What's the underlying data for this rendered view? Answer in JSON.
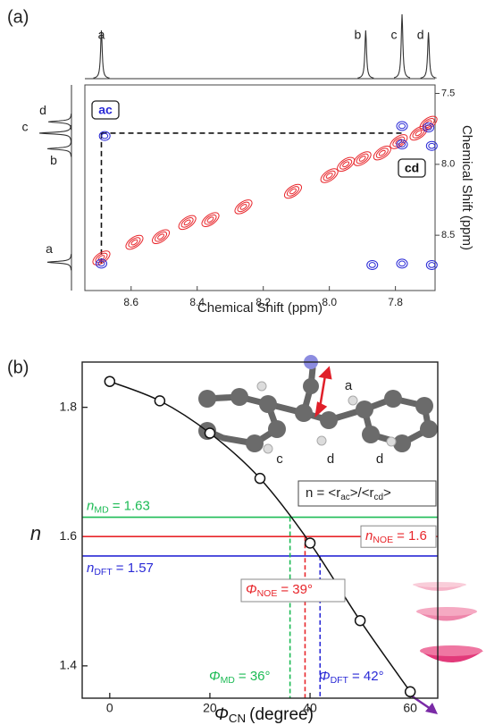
{
  "panel_labels": [
    "(a)",
    "(b)"
  ],
  "chart_data": [
    {
      "type": "contour",
      "x_label": "Chemical Shift (ppm)",
      "y_label": "Chemical Shift (ppm)",
      "xlim": [
        8.74,
        7.68
      ],
      "xticks": [
        8.6,
        8.4,
        8.2,
        {
          "value": 8.0,
          "label": "8.0"
        },
        7.8
      ],
      "ylim": [
        7.44,
        8.89
      ],
      "yticks": [
        7.5,
        {
          "value": 8.0,
          "label": "8.0"
        },
        8.5
      ],
      "projection_peaks": {
        "names": [
          "a",
          "b",
          "c",
          "d"
        ],
        "shifts": [
          8.69,
          7.89,
          7.78,
          7.7
        ],
        "intensities": [
          0.75,
          0.75,
          1,
          0.72
        ]
      },
      "cross_peak_labels": [
        "ac",
        "cd"
      ],
      "peak_sets": [
        {
          "color": "#e8262b",
          "x": [
            8.69,
            8.59,
            8.51,
            8.43,
            8.36,
            8.26,
            8.11,
            8.0,
            7.95,
            7.9,
            7.84,
            7.79,
            7.73,
            7.7
          ],
          "y": [
            8.66,
            8.55,
            8.51,
            8.41,
            8.39,
            8.3,
            8.19,
            8.08,
            8.0,
            7.96,
            7.92,
            7.84,
            7.78,
            7.71
          ]
        },
        {
          "color": "#2a2ad6",
          "x": [
            8.68,
            8.69,
            7.78,
            7.78,
            7.7,
            7.69,
            7.87,
            7.78,
            7.69
          ],
          "y": [
            7.8,
            8.7,
            7.73,
            7.86,
            7.74,
            7.87,
            8.71,
            8.7,
            8.71
          ]
        }
      ]
    },
    {
      "type": "line",
      "x_label": {
        "symbol": "Φ",
        "subscript": "CN",
        "rest": "(degree)"
      },
      "y_label": "n",
      "x": [
        0,
        10,
        20,
        30,
        40,
        50,
        60
      ],
      "values": [
        1.84,
        1.81,
        1.76,
        1.69,
        1.59,
        1.47,
        1.36
      ],
      "color": "#111111",
      "xlim": [
        -5.5,
        65.5
      ],
      "xticks": [
        0,
        20,
        40,
        60
      ],
      "ylim": [
        1.35,
        1.87
      ],
      "yticks": [
        1.4,
        1.6,
        1.8
      ],
      "reference_lines": [
        {
          "symbol": "n",
          "subscript": "MD",
          "value": 1.63,
          "value_label": "= 1.63",
          "color": "#1dbb55"
        },
        {
          "symbol": "n",
          "subscript": "NOE",
          "value": 1.6,
          "value_label": "= 1.6",
          "color": "#e8262b"
        },
        {
          "symbol": "n",
          "subscript": "DFT",
          "value": 1.57,
          "value_label": "= 1.57",
          "color": "#2a2ad6"
        }
      ],
      "angle_lines": [
        {
          "symbol": "Φ",
          "subscript": "MD",
          "value": 36,
          "value_label": "= 36°",
          "color": "#1dbb55"
        },
        {
          "symbol": "Φ",
          "subscript": "NOE",
          "value": 39,
          "value_label": "= 39°",
          "color": "#e8262b"
        },
        {
          "symbol": "Φ",
          "subscript": "DFT",
          "value": 42,
          "value_label": "= 42°",
          "color": "#2a2ad6"
        }
      ],
      "formula": [
        {
          "text": "n = <r"
        },
        {
          "sub": "ac"
        },
        {
          "text": ">/<r"
        },
        {
          "sub": "cd"
        },
        {
          "text": ">"
        }
      ],
      "molecule_labels": [
        "a",
        "c",
        "d",
        "d"
      ]
    }
  ]
}
